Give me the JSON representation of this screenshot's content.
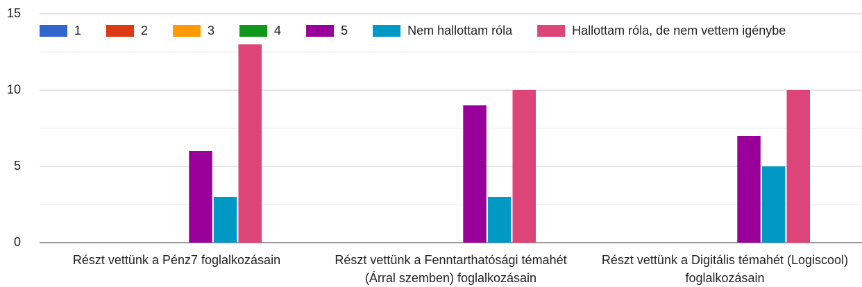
{
  "chart_data": {
    "type": "bar",
    "categories": [
      "Részt vettünk a Pénz7 foglalkozásain",
      "Részt vettünk a Fenntarthatósági témahét (Árral szemben) foglalkozásain",
      "Részt vettünk a Digitális témahét (Logiscool) foglalkozásain"
    ],
    "series": [
      {
        "name": "1",
        "color": "#3366cc",
        "values": [
          0,
          0,
          0
        ]
      },
      {
        "name": "2",
        "color": "#dc3912",
        "values": [
          0,
          0,
          0
        ]
      },
      {
        "name": "3",
        "color": "#ff9900",
        "values": [
          0,
          0,
          0
        ]
      },
      {
        "name": "4",
        "color": "#109618",
        "values": [
          0,
          0,
          0
        ]
      },
      {
        "name": "5",
        "color": "#990099",
        "values": [
          6,
          9,
          7
        ]
      },
      {
        "name": "Nem hallottam róla",
        "color": "#0099c6",
        "values": [
          3,
          3,
          5
        ]
      },
      {
        "name": "Hallottam róla, de nem vettem igénybe",
        "color": "#dd4477",
        "values": [
          13,
          10,
          10
        ]
      }
    ],
    "ylim": [
      0,
      15
    ],
    "yticks": [
      0,
      5,
      10,
      15
    ],
    "minor_yticks": [
      2.5,
      7.5,
      12.5
    ],
    "grid": true,
    "legend": "top"
  }
}
